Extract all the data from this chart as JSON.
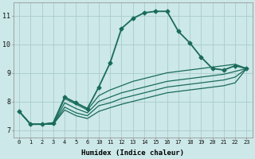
{
  "xlabel": "Humidex (Indice chaleur)",
  "bg_color": "#cce8e8",
  "grid_color": "#aacccc",
  "line_color": "#1a6b5a",
  "xlim": [
    -0.5,
    20.5
  ],
  "ylim": [
    6.75,
    11.45
  ],
  "xtick_labels": [
    "0",
    "1",
    "2",
    "3",
    "4",
    "5",
    "6",
    "10",
    "11",
    "12",
    "13",
    "14",
    "15",
    "16",
    "17",
    "18",
    "19",
    "20",
    "21",
    "22",
    "23"
  ],
  "yticks": [
    7,
    8,
    9,
    10,
    11
  ],
  "line1": {
    "y": [
      7.65,
      7.2,
      7.2,
      7.25,
      8.15,
      7.95,
      7.75,
      8.5,
      9.35,
      10.55,
      10.9,
      11.1,
      11.15,
      11.15,
      10.45,
      10.05,
      9.55,
      9.15,
      9.1,
      9.25,
      9.15
    ],
    "marker": "D",
    "markersize": 2.5,
    "linewidth": 1.3
  },
  "line2": {
    "y": [
      7.65,
      7.2,
      7.2,
      7.25,
      8.1,
      7.9,
      7.7,
      8.2,
      8.4,
      8.55,
      8.7,
      8.8,
      8.9,
      9.0,
      9.05,
      9.1,
      9.15,
      9.2,
      9.25,
      9.3,
      9.15
    ],
    "marker": null,
    "linewidth": 0.9
  },
  "line3": {
    "y": [
      7.65,
      7.2,
      7.2,
      7.2,
      7.95,
      7.75,
      7.6,
      8.0,
      8.15,
      8.3,
      8.4,
      8.5,
      8.6,
      8.7,
      8.75,
      8.8,
      8.85,
      8.9,
      8.95,
      9.05,
      9.15
    ],
    "marker": null,
    "linewidth": 0.9
  },
  "line4": {
    "y": [
      7.65,
      7.2,
      7.2,
      7.2,
      7.8,
      7.6,
      7.5,
      7.85,
      7.95,
      8.1,
      8.2,
      8.3,
      8.4,
      8.5,
      8.55,
      8.6,
      8.65,
      8.7,
      8.75,
      8.85,
      9.15
    ],
    "marker": null,
    "linewidth": 0.9
  },
  "line5": {
    "y": [
      7.65,
      7.2,
      7.2,
      7.2,
      7.7,
      7.5,
      7.4,
      7.65,
      7.78,
      7.9,
      8.0,
      8.1,
      8.2,
      8.3,
      8.35,
      8.4,
      8.45,
      8.5,
      8.55,
      8.65,
      9.15
    ],
    "marker": null,
    "linewidth": 0.9
  }
}
